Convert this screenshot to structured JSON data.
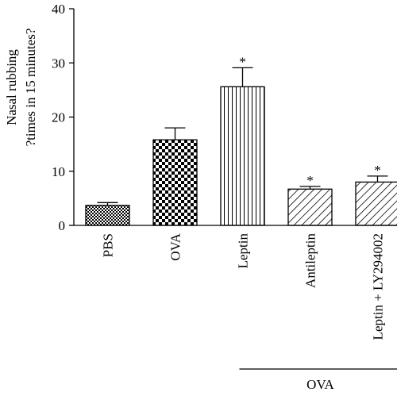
{
  "chart_data": {
    "type": "bar",
    "categories": [
      "PBS",
      "OVA",
      "Leptin",
      "Antileptin",
      "Leptin + LY294002"
    ],
    "values": [
      3.7,
      15.8,
      25.6,
      6.7,
      8.0
    ],
    "errors": [
      0.5,
      2.2,
      3.5,
      0.5,
      1.1
    ],
    "significance": [
      "",
      "",
      "*",
      "*",
      "*"
    ],
    "patterns": [
      "fine-checker",
      "coarse-checker",
      "vertical-lines",
      "diagonal-lines",
      "diagonal-lines"
    ],
    "ylabel_line1": "Nasal rubbing",
    "ylabel_line2": "?times in 15 minutes?",
    "ylim": [
      0,
      40
    ],
    "yticks": [
      0,
      10,
      20,
      30,
      40
    ],
    "group_bracket": {
      "label": "OVA",
      "covers": [
        "Leptin",
        "Antileptin",
        "Leptin + LY294002"
      ]
    },
    "grid": false,
    "legend": "none"
  }
}
